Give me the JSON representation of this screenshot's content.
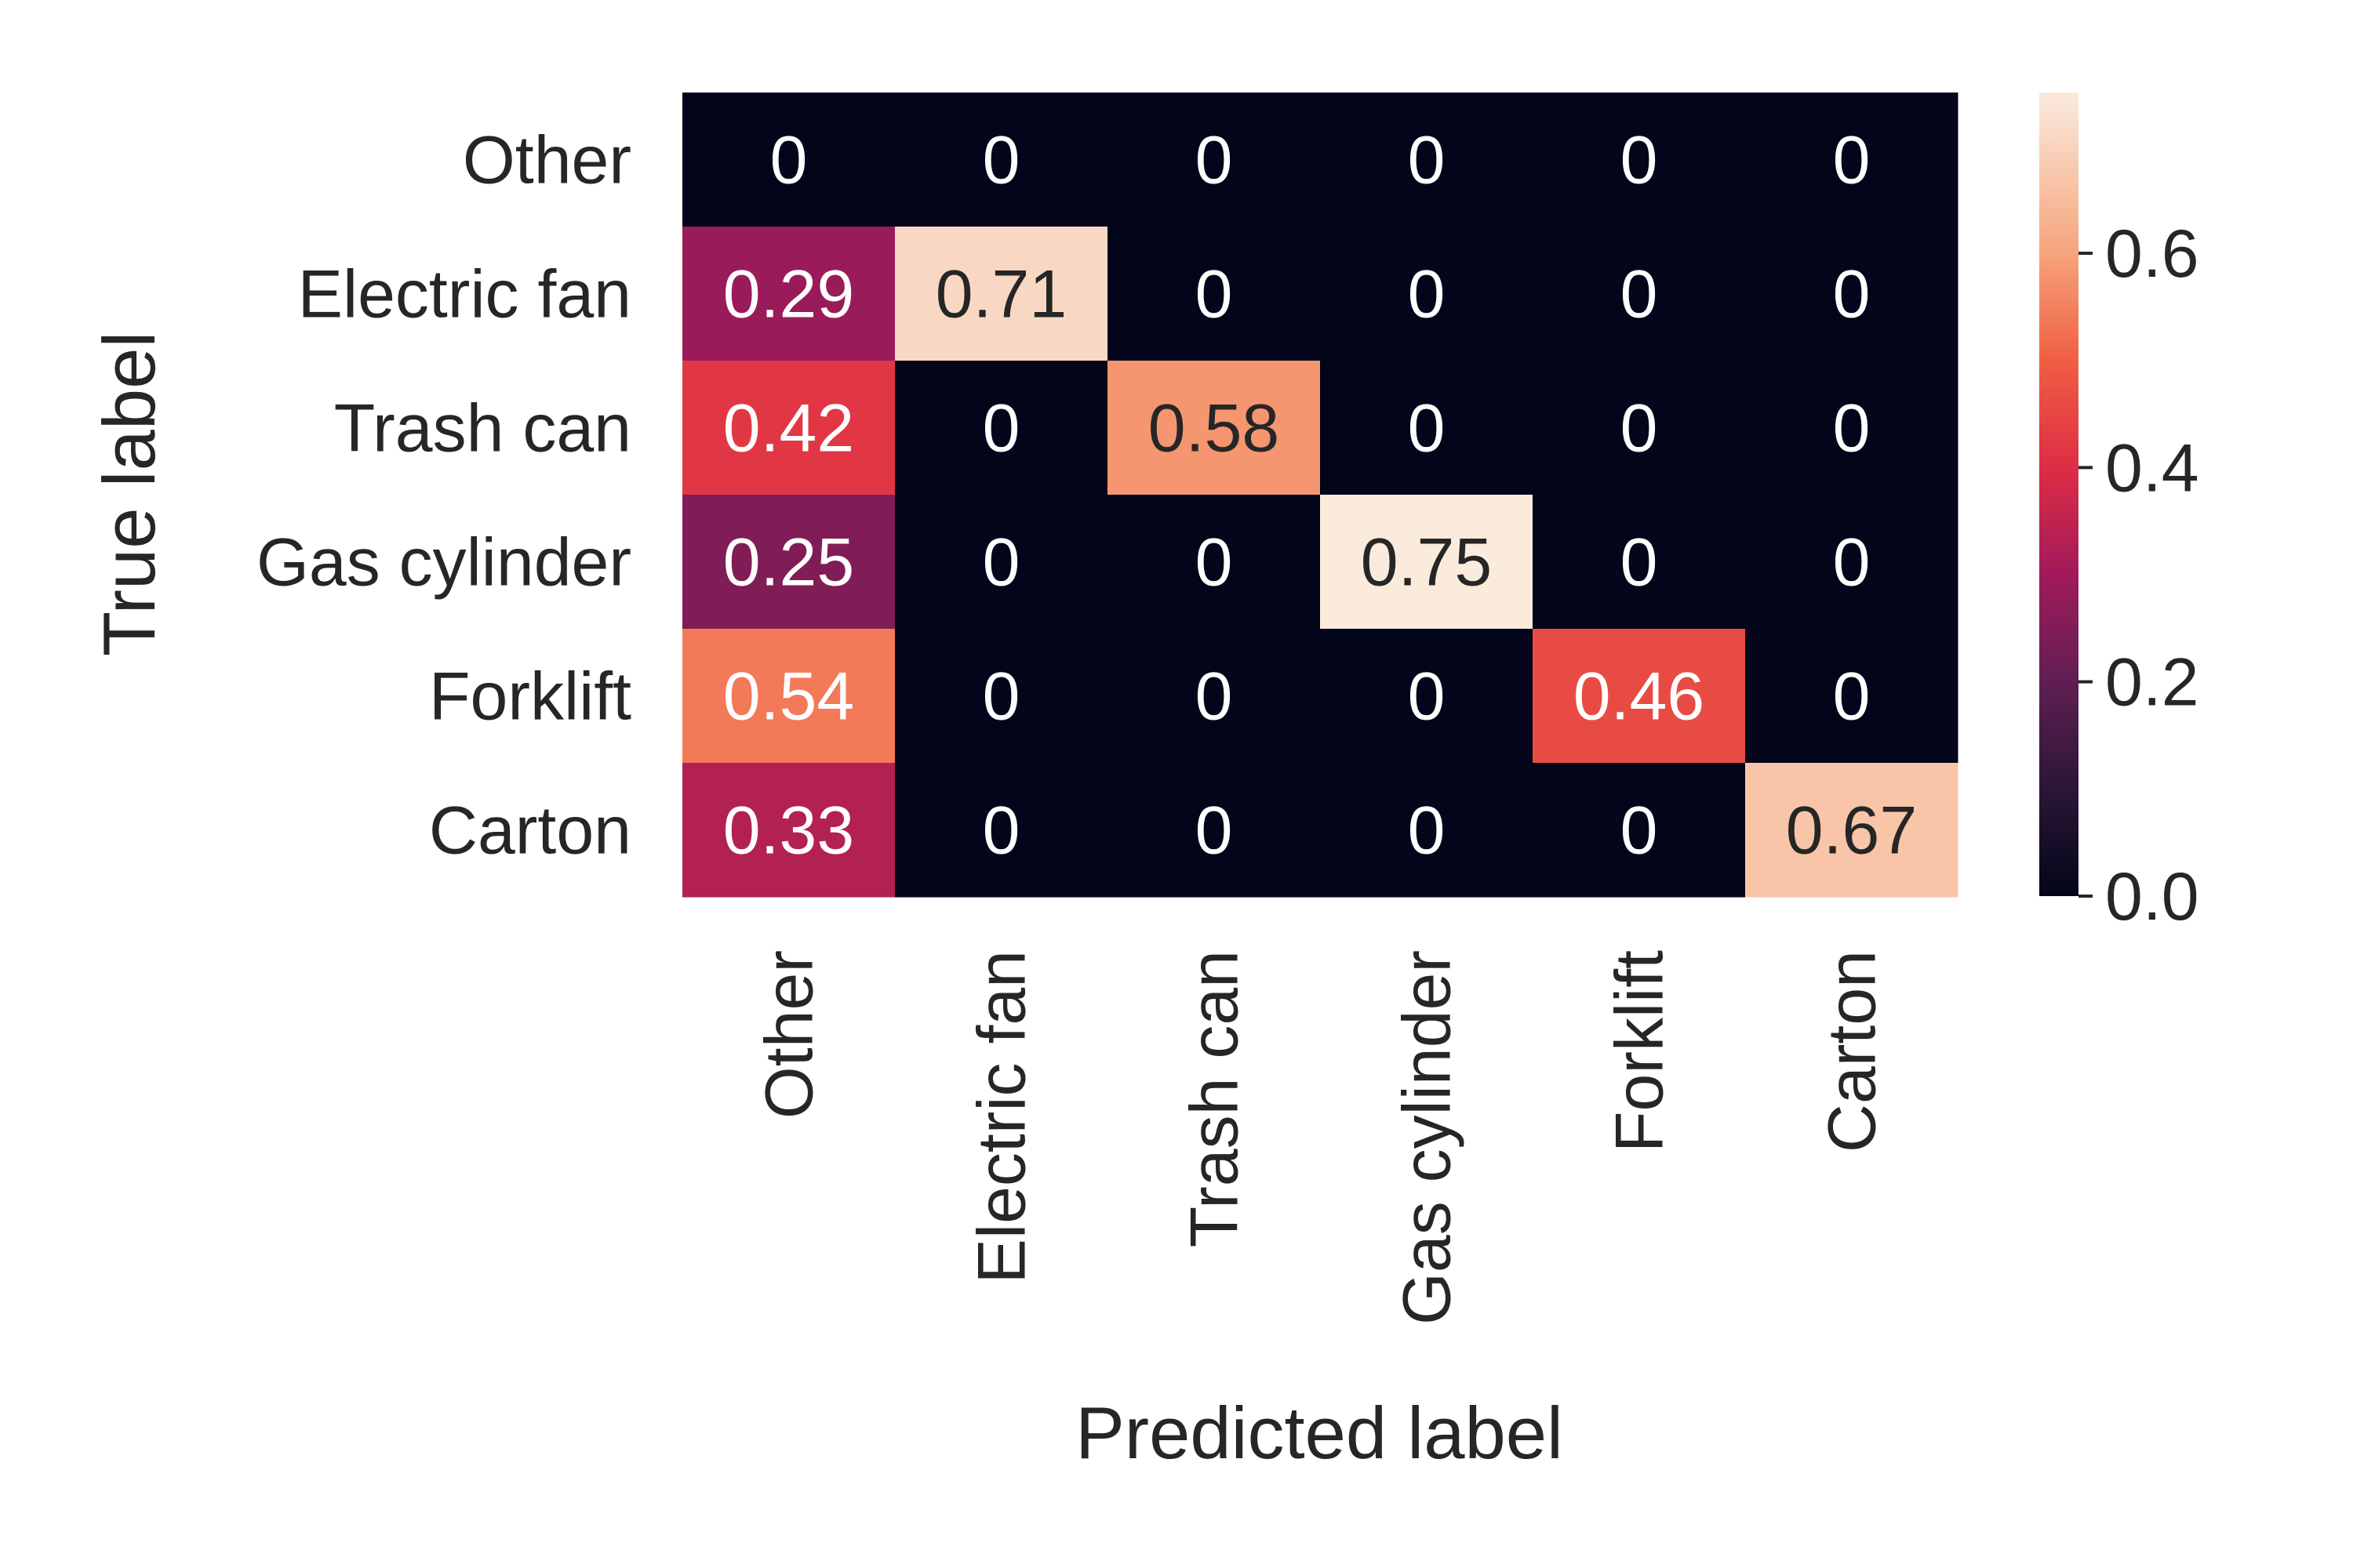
{
  "chart_data": {
    "type": "heatmap",
    "title": "",
    "xlabel": "Predicted label",
    "ylabel": "True label",
    "x_categories": [
      "Other",
      "Electric fan",
      "Trash can",
      "Gas cylinder",
      "Forklift",
      "Carton"
    ],
    "y_categories": [
      "Other",
      "Electric fan",
      "Trash can",
      "Gas cylinder",
      "Forklift",
      "Carton"
    ],
    "values": [
      [
        0,
        0,
        0,
        0,
        0,
        0
      ],
      [
        0.29,
        0.71,
        0,
        0,
        0,
        0
      ],
      [
        0.42,
        0,
        0.58,
        0,
        0,
        0
      ],
      [
        0.25,
        0,
        0,
        0.75,
        0,
        0
      ],
      [
        0.54,
        0,
        0,
        0,
        0.46,
        0
      ],
      [
        0.33,
        0,
        0,
        0,
        0,
        0.67
      ]
    ],
    "annotations": [
      [
        "0",
        "0",
        "0",
        "0",
        "0",
        "0"
      ],
      [
        "0.29",
        "0.71",
        "0",
        "0",
        "0",
        "0"
      ],
      [
        "0.42",
        "0",
        "0.58",
        "0",
        "0",
        "0"
      ],
      [
        "0.25",
        "0",
        "0",
        "0.75",
        "0",
        "0"
      ],
      [
        "0.54",
        "0",
        "0",
        "0",
        "0.46",
        "0"
      ],
      [
        "0.33",
        "0",
        "0",
        "0",
        "0",
        "0.67"
      ]
    ],
    "colorbar": {
      "range": [
        0,
        0.75
      ],
      "ticks": [
        0.0,
        0.2,
        0.4,
        0.6
      ],
      "tick_labels": [
        "0.0",
        "0.2",
        "0.4",
        "0.6"
      ]
    },
    "colormap": "rocket",
    "grid": false
  }
}
